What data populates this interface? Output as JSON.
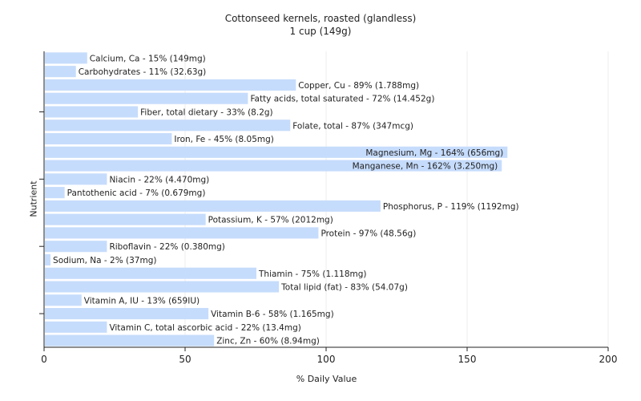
{
  "chart_data": {
    "type": "bar",
    "orientation": "horizontal",
    "title": "Cottonseed kernels, roasted (glandless)",
    "subtitle": "1 cup (149g)",
    "xlabel": "% Daily Value",
    "ylabel": "Nutrient",
    "xlim": [
      0,
      200
    ],
    "xticks": [
      "0",
      "50",
      "100",
      "150",
      "200"
    ],
    "grid": true,
    "bar_color": "#c6dcfc",
    "grid_color": "#eeeeee",
    "bars": [
      {
        "value": 15,
        "label": "Calcium, Ca - 15% (149mg)"
      },
      {
        "value": 11,
        "label": "Carbohydrates - 11% (32.63g)"
      },
      {
        "value": 89,
        "label": "Copper, Cu - 89% (1.788mg)"
      },
      {
        "value": 72,
        "label": "Fatty acids, total saturated - 72% (14.452g)"
      },
      {
        "value": 33,
        "label": "Fiber, total dietary - 33% (8.2g)"
      },
      {
        "value": 87,
        "label": "Folate, total - 87% (347mcg)"
      },
      {
        "value": 45,
        "label": "Iron, Fe - 45% (8.05mg)"
      },
      {
        "value": 164,
        "label": "Magnesium, Mg - 164% (656mg)"
      },
      {
        "value": 162,
        "label": "Manganese, Mn - 162% (3.250mg)"
      },
      {
        "value": 22,
        "label": "Niacin - 22% (4.470mg)"
      },
      {
        "value": 7,
        "label": "Pantothenic acid - 7% (0.679mg)"
      },
      {
        "value": 119,
        "label": "Phosphorus, P - 119% (1192mg)"
      },
      {
        "value": 57,
        "label": "Potassium, K - 57% (2012mg)"
      },
      {
        "value": 97,
        "label": "Protein - 97% (48.56g)"
      },
      {
        "value": 22,
        "label": "Riboflavin - 22% (0.380mg)"
      },
      {
        "value": 2,
        "label": "Sodium, Na - 2% (37mg)"
      },
      {
        "value": 75,
        "label": "Thiamin - 75% (1.118mg)"
      },
      {
        "value": 83,
        "label": "Total lipid (fat) - 83% (54.07g)"
      },
      {
        "value": 13,
        "label": "Vitamin A, IU - 13% (659IU)"
      },
      {
        "value": 58,
        "label": "Vitamin B-6 - 58% (1.165mg)"
      },
      {
        "value": 22,
        "label": "Vitamin C, total ascorbic acid - 22% (13.4mg)"
      },
      {
        "value": 60,
        "label": "Zinc, Zn - 60% (8.94mg)"
      }
    ]
  }
}
